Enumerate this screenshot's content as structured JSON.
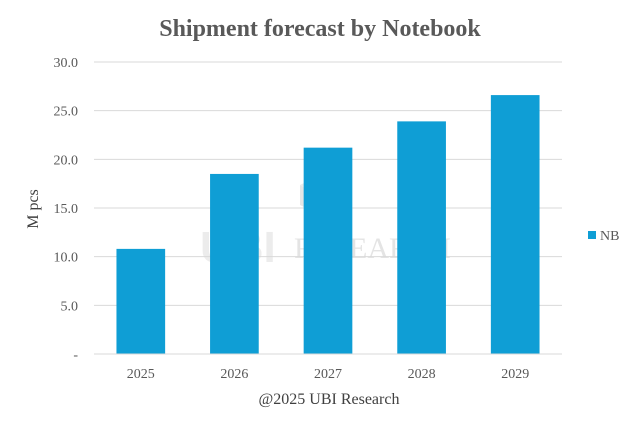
{
  "chart_data": {
    "type": "bar",
    "title": "Shipment forecast by Notebook",
    "xlabel": "@2025 UBI Research",
    "ylabel": "M pcs",
    "categories": [
      "2025",
      "2026",
      "2027",
      "2028",
      "2029"
    ],
    "series": [
      {
        "name": "NB",
        "values": [
          10.8,
          18.5,
          21.2,
          23.9,
          26.6
        ],
        "color": "#0f9ed5"
      }
    ],
    "ylim": [
      0,
      30
    ],
    "yticks": [
      "-",
      "5.0",
      "10.0",
      "15.0",
      "20.0",
      "25.0",
      "30.0"
    ],
    "grid": true,
    "legend": "right"
  },
  "watermark": {
    "logo": "UBI",
    "text": "RESEARCH"
  }
}
